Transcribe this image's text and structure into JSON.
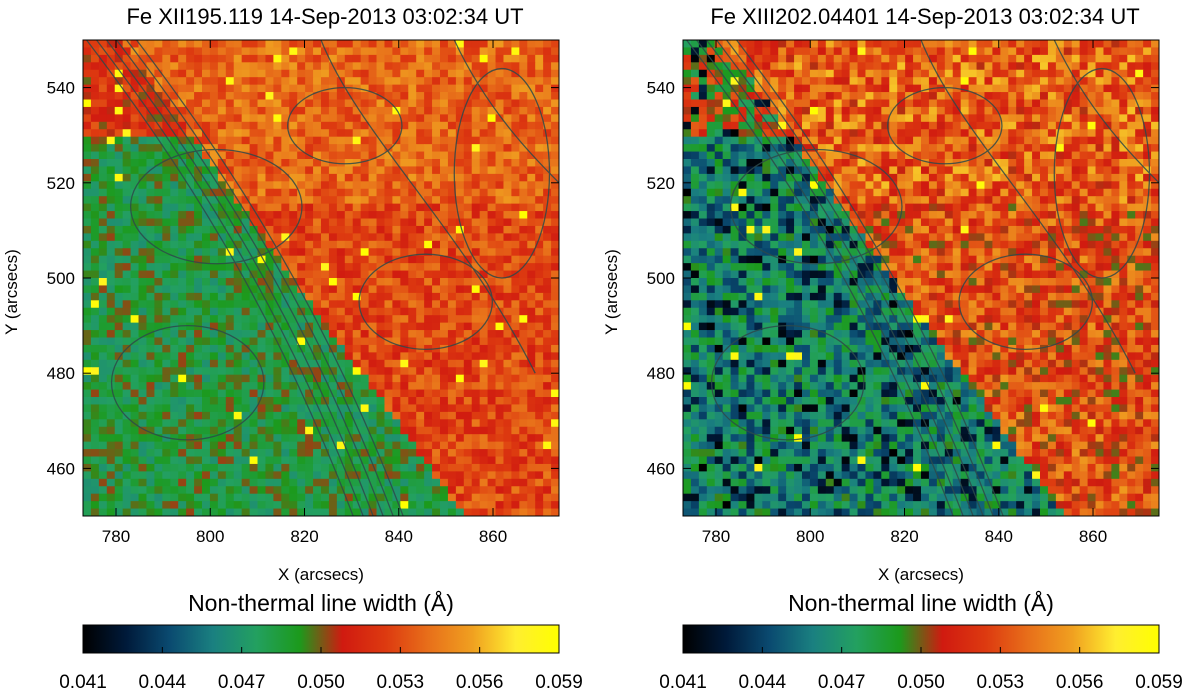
{
  "colors": {
    "colormap": [
      "#000000",
      "#001a3a",
      "#0a4a70",
      "#1a8080",
      "#23a060",
      "#1c9a1c",
      "#d01a10",
      "#dd3a10",
      "#e8701a",
      "#f0a020",
      "#ffee30",
      "#ffff00"
    ],
    "contour": "#2e4a4a"
  },
  "colorbar": {
    "title": "Non-thermal line width (Å)",
    "ticks": [
      "0.041",
      "0.044",
      "0.047",
      "0.050",
      "0.053",
      "0.056",
      "0.059"
    ],
    "range": [
      0.041,
      0.059
    ]
  },
  "chart_data": [
    {
      "type": "heatmap",
      "title": "Fe XII195.119 14-Sep-2013 03:02:34 UT",
      "xlabel": "X (arcsecs)",
      "ylabel": "Y (arcsecs)",
      "xlim": [
        773,
        874
      ],
      "ylim": [
        450,
        550
      ],
      "xticks": [
        "780",
        "800",
        "820",
        "840",
        "860"
      ],
      "yticks": [
        "460",
        "480",
        "500",
        "520",
        "540"
      ],
      "colorbar_label": "Non-thermal line width (Å)",
      "value_range": [
        0.041,
        0.059
      ],
      "summary": {
        "left_of_ridge_mean": 0.0485,
        "right_of_ridge_mean": 0.0527,
        "upper_right_mean": 0.0538,
        "min_observed": 0.044,
        "max_observed": 0.059
      }
    },
    {
      "type": "heatmap",
      "title": "Fe XIII202.04401 14-Sep-2013 03:02:34 UT",
      "xlabel": "X (arcsecs)",
      "ylabel": "Y (arcsecs)",
      "xlim": [
        773,
        874
      ],
      "ylim": [
        450,
        550
      ],
      "xticks": [
        "780",
        "800",
        "820",
        "840",
        "860"
      ],
      "yticks": [
        "460",
        "480",
        "500",
        "520",
        "540"
      ],
      "colorbar_label": "Non-thermal line width (Å)",
      "value_range": [
        0.041,
        0.059
      ],
      "summary": {
        "left_of_ridge_mean": 0.0465,
        "right_of_ridge_mean": 0.0525,
        "upper_right_mean": 0.0535,
        "min_observed": 0.041,
        "max_observed": 0.059
      }
    }
  ]
}
